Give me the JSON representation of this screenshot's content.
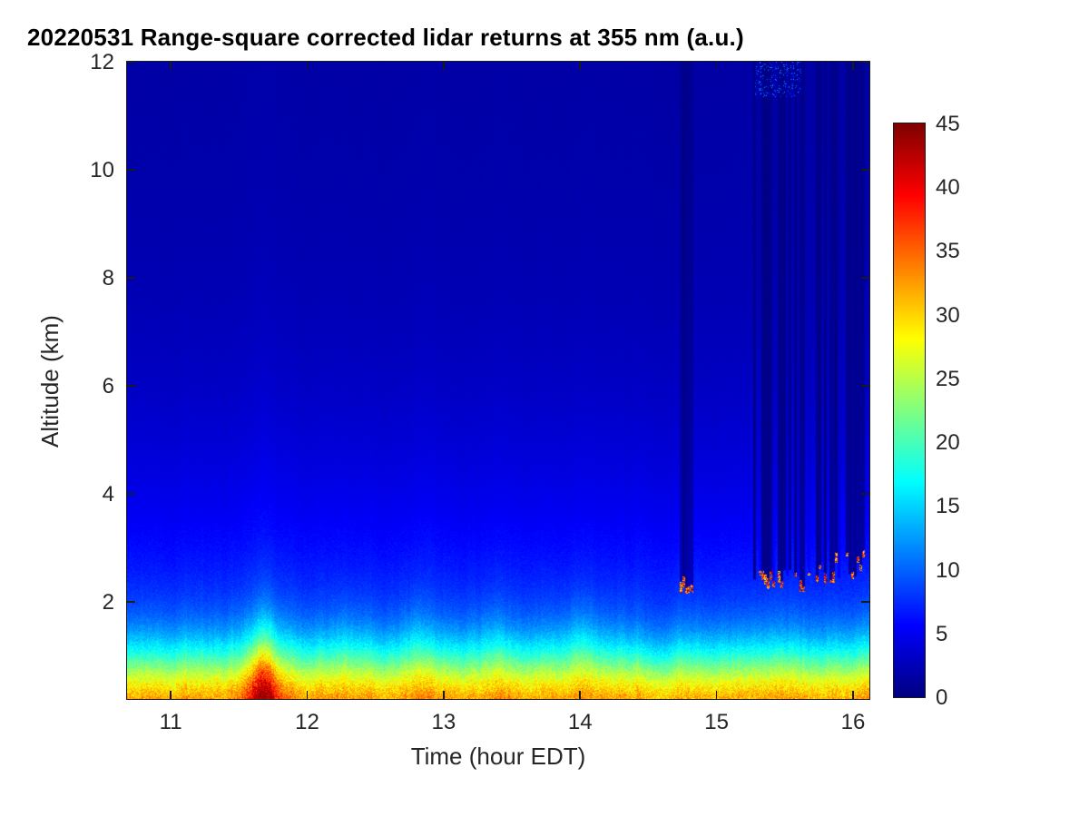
{
  "figure": {
    "background": "#ffffff",
    "text_color": "#262626",
    "axis_color": "#1a1a1a",
    "title_color": "#000000"
  },
  "chart_data": {
    "type": "heatmap",
    "title": "20220531  Range-square corrected lidar returns at 355 nm (a.u.)",
    "xlabel": "Time (hour EDT)",
    "ylabel": "Altitude (km)",
    "units": "a.u.",
    "x_range": [
      10.68,
      16.12
    ],
    "y_range": [
      0.2,
      12
    ],
    "x_ticks": [
      11,
      12,
      13,
      14,
      15,
      16
    ],
    "y_ticks": [
      2,
      4,
      6,
      8,
      10,
      12
    ],
    "colormap": "jet",
    "color_range": [
      0,
      45
    ],
    "colorbar_ticks": [
      0,
      5,
      10,
      15,
      20,
      25,
      30,
      35,
      40,
      45
    ],
    "legend_position": "right-colorbar",
    "grid": false,
    "description": "Time-height lidar curtain: strong boundary-layer returns (25-35 a.u., yellow-orange) below ~1 km all afternoon, a plume maximum (~38-42 a.u., orange-red) near 11.7 h, cyan aerosol layer (~12-16 a.u.) up to ~2 km, weak blue molecular signal (2-8 a.u.) aloft, low clouds near 2.2-2.9 km after 14.7 h giving saturated red returns (~40-45 a.u.) with dark attenuated columns above them, and faint noise speckle near 11.5-12 km around 15.3-15.6 h.",
    "field_model": {
      "background": 1.5,
      "mid_amp": 13,
      "mid_scale_km": 2.8,
      "surface_amp": 19,
      "surface_scale_km": 1.1,
      "surface_plume": {
        "t": 11.68,
        "sigma_h": 0.12,
        "amp_factor": 0.45
      },
      "column_glow": {
        "t": 11.7,
        "sigma_h": 0.2,
        "factor": 0.1
      },
      "noise_factor": 0.2,
      "bl_bumps": [
        {
          "t": 11.7,
          "amp": 0.1,
          "sigma": 0.15
        },
        {
          "t": 12.3,
          "amp": 0.07,
          "sigma": 0.1
        },
        {
          "t": 12.78,
          "amp": 0.09,
          "sigma": 0.07
        },
        {
          "t": 13.35,
          "amp": 0.08,
          "sigma": 0.12
        },
        {
          "t": 14.0,
          "amp": 0.12,
          "sigma": 0.12
        },
        {
          "t": 14.55,
          "amp": -0.07,
          "sigma": 0.15
        }
      ],
      "cloud_events": [
        {
          "t0": 14.73,
          "t1": 14.83,
          "base": 2.2,
          "jitter": 0.1,
          "dark": 0.22
        },
        {
          "t0": 15.27,
          "t1": 15.43,
          "base": 2.3,
          "jitter": 0.2,
          "dark": 0.12
        },
        {
          "t0": 15.45,
          "t1": 15.54,
          "base": 2.35,
          "jitter": 0.2,
          "dark": 0.12
        },
        {
          "t0": 15.56,
          "t1": 15.64,
          "base": 2.3,
          "jitter": 0.2,
          "dark": 0.16
        },
        {
          "t0": 15.72,
          "t1": 15.81,
          "base": 2.45,
          "jitter": 0.25,
          "dark": 0.16
        },
        {
          "t0": 15.83,
          "t1": 16.08,
          "base": 2.5,
          "jitter": 0.35,
          "dark": 0.2
        }
      ],
      "upper_noise_patch": {
        "t0": 15.28,
        "t1": 15.62,
        "z0": 11.35,
        "z1": 12.0,
        "value": 13,
        "density": 0.18
      }
    }
  }
}
